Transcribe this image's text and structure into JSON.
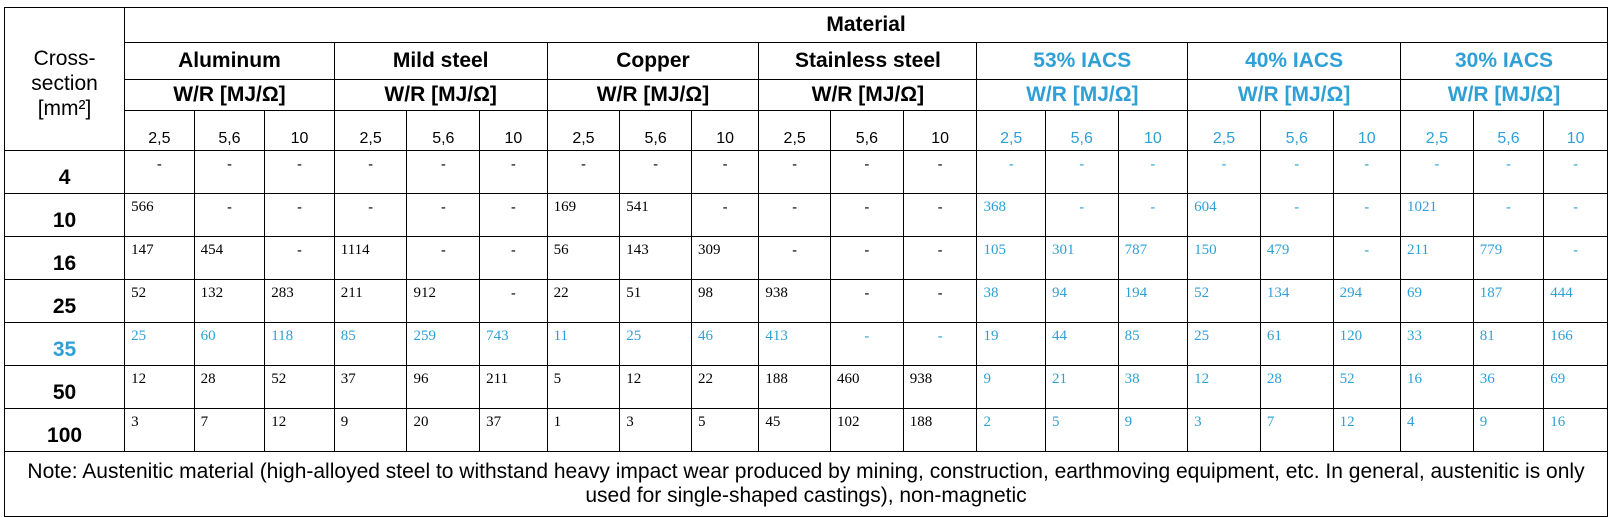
{
  "header": {
    "cross_section": "Cross-section [mm²]",
    "material": "Material",
    "materials": [
      {
        "name": "Aluminum",
        "unit": "W/R [MJ/Ω]",
        "blue": false
      },
      {
        "name": "Mild steel",
        "unit": "W/R [MJ/Ω]",
        "blue": false
      },
      {
        "name": "Copper",
        "unit": "W/R [MJ/Ω]",
        "blue": false
      },
      {
        "name": "Stainless steel",
        "unit": "W/R [MJ/Ω]",
        "blue": false
      },
      {
        "name": "53% IACS",
        "unit": "W/R [MJ/Ω]",
        "blue": true
      },
      {
        "name": "40% IACS",
        "unit": "W/R [MJ/Ω]",
        "blue": true
      },
      {
        "name": "30% IACS",
        "unit": "W/R [MJ/Ω]",
        "blue": true
      }
    ],
    "sub_columns": [
      "2,5",
      "5,6",
      "10"
    ]
  },
  "rows": [
    {
      "section": "4",
      "blue": false,
      "values": [
        "-",
        "-",
        "-",
        "-",
        "-",
        "-",
        "-",
        "-",
        "-",
        "-",
        "-",
        "-",
        "-",
        "-",
        "-",
        "-",
        "-",
        "-",
        "-",
        "-",
        "-"
      ]
    },
    {
      "section": "10",
      "blue": false,
      "values": [
        "566",
        "-",
        "-",
        "-",
        "-",
        "-",
        "169",
        "541",
        "-",
        "-",
        "-",
        "-",
        "368",
        "-",
        "-",
        "604",
        "-",
        "-",
        "1021",
        "-",
        "-"
      ]
    },
    {
      "section": "16",
      "blue": false,
      "values": [
        "147",
        "454",
        "-",
        "1114",
        "-",
        "-",
        "56",
        "143",
        "309",
        "-",
        "-",
        "-",
        "105",
        "301",
        "787",
        "150",
        "479",
        "-",
        "211",
        "779",
        "-"
      ]
    },
    {
      "section": "25",
      "blue": false,
      "values": [
        "52",
        "132",
        "283",
        "211",
        "912",
        "-",
        "22",
        "51",
        "98",
        "938",
        "-",
        "-",
        "38",
        "94",
        "194",
        "52",
        "134",
        "294",
        "69",
        "187",
        "444"
      ]
    },
    {
      "section": "35",
      "blue": true,
      "values": [
        "25",
        "60",
        "118",
        "85",
        "259",
        "743",
        "11",
        "25",
        "46",
        "413",
        "-",
        "-",
        "19",
        "44",
        "85",
        "25",
        "61",
        "120",
        "33",
        "81",
        "166"
      ]
    },
    {
      "section": "50",
      "blue": false,
      "values": [
        "12",
        "28",
        "52",
        "37",
        "96",
        "211",
        "5",
        "12",
        "22",
        "188",
        "460",
        "938",
        "9",
        "21",
        "38",
        "12",
        "28",
        "52",
        "16",
        "36",
        "69"
      ]
    },
    {
      "section": "100",
      "blue": false,
      "values": [
        "3",
        "7",
        "12",
        "9",
        "20",
        "37",
        "1",
        "3",
        "5",
        "45",
        "102",
        "188",
        "2",
        "5",
        "9",
        "3",
        "7",
        "12",
        "4",
        "9",
        "16"
      ]
    }
  ],
  "note": "Note: Austenitic material (high-alloyed steel to withstand heavy impact wear produced by mining, construction, earthmoving equipment, etc. In general, austenitic is only used for single-shaped castings), non-magnetic"
}
